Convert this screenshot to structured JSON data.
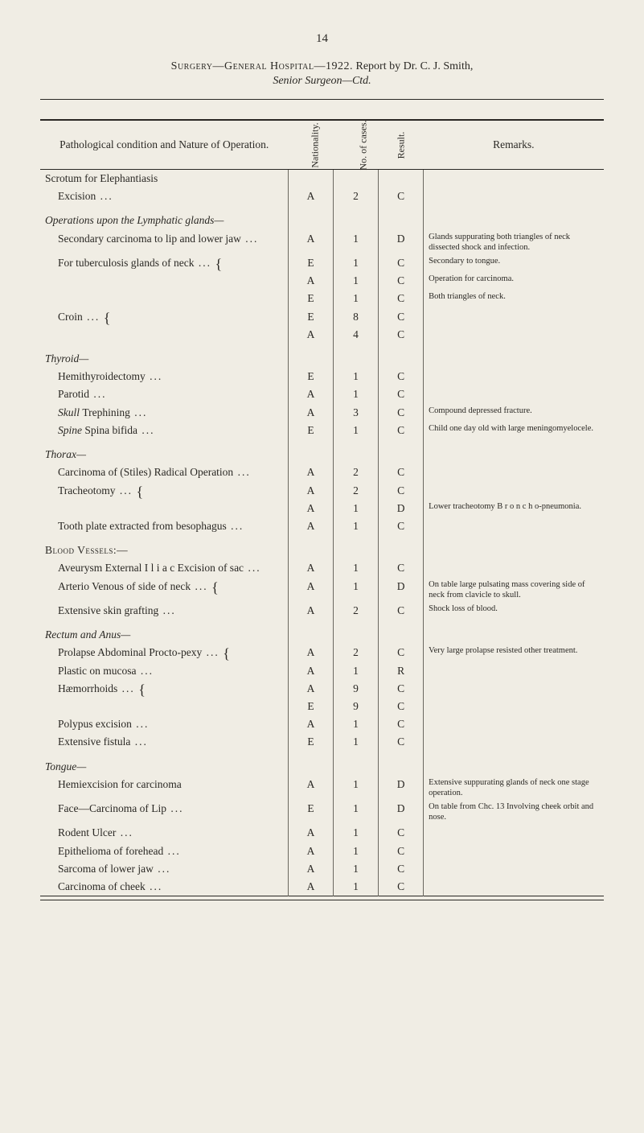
{
  "page_number": "14",
  "title_pre": "Surgery—General Hospital—1922.",
  "title_post": "Report by Dr. C. J. Smith,",
  "subtitle": "Senior Surgeon—Ctd.",
  "headers": {
    "condition": "Pathological condition and Nature of Operation.",
    "nationality": "Nationality.",
    "cases": "No. of cases.",
    "result": "Result.",
    "remarks": "Remarks."
  },
  "rows": [
    {
      "type": "row",
      "cond": "Scrotum for Elephantiasis",
      "indent": 0
    },
    {
      "type": "row",
      "cond": "Excision",
      "indent": 1,
      "dots": true,
      "n": "A",
      "v": "2",
      "r": "C"
    },
    {
      "type": "section",
      "cond": "Operations upon the Lymphatic glands—"
    },
    {
      "type": "row",
      "cond": "Secondary carcinoma to lip and lower jaw",
      "indent": 1,
      "dots": true,
      "n": "A",
      "v": "1",
      "r": "D",
      "rem": "Glands suppurating both triangles of neck dissected shock and infection."
    },
    {
      "type": "row",
      "cond": "For tuberculosis glands of neck",
      "indent": 1,
      "dots": true,
      "brace": true,
      "n": "E",
      "v": "1",
      "r": "C",
      "rem": "Secondary to tongue."
    },
    {
      "type": "row",
      "cond": "",
      "indent": 1,
      "n": "A",
      "v": "1",
      "r": "C",
      "rem": "Operation for carcinoma."
    },
    {
      "type": "row",
      "cond": "",
      "indent": 1,
      "n": "E",
      "v": "1",
      "r": "C",
      "rem": "Both triangles of neck."
    },
    {
      "type": "row",
      "cond": "Croin",
      "indent": 1,
      "dots": true,
      "brace": true,
      "n": "E",
      "v": "8",
      "r": "C"
    },
    {
      "type": "row",
      "cond": "",
      "indent": 1,
      "n": "A",
      "v": "4",
      "r": "C"
    },
    {
      "type": "section",
      "cond": "Thyroid—"
    },
    {
      "type": "row",
      "cond": "Hemithyroidectomy",
      "indent": 1,
      "dots": true,
      "n": "E",
      "v": "1",
      "r": "C"
    },
    {
      "type": "row",
      "cond": "Parotid",
      "indent": 1,
      "dots": true,
      "n": "A",
      "v": "1",
      "r": "C"
    },
    {
      "type": "row",
      "cond": "Skull Trephining",
      "iword": "Skull",
      "indent": 1,
      "dots": true,
      "n": "A",
      "v": "3",
      "r": "C",
      "rem": "Compound depressed fracture."
    },
    {
      "type": "row",
      "cond": "Spine Spina bifida",
      "iword": "Spine",
      "indent": 1,
      "dots": true,
      "n": "E",
      "v": "1",
      "r": "C",
      "rem": "Child one day old with large meningomyelocele."
    },
    {
      "type": "section",
      "cond": "Thorax—"
    },
    {
      "type": "row",
      "cond": "Carcinoma of (Stiles) Radical Operation",
      "indent": 1,
      "dots": true,
      "n": "A",
      "v": "2",
      "r": "C"
    },
    {
      "type": "row",
      "cond": "Tracheotomy",
      "indent": 1,
      "dots": true,
      "brace": true,
      "n": "A",
      "v": "2",
      "r": "C"
    },
    {
      "type": "row",
      "cond": "",
      "indent": 1,
      "n": "A",
      "v": "1",
      "r": "D",
      "rem": "Lower tracheotomy B r o n c h o-pneumonia."
    },
    {
      "type": "row",
      "cond": "Tooth plate extracted from besophagus",
      "indent": 1,
      "dots": true,
      "n": "A",
      "v": "1",
      "r": "C"
    },
    {
      "type": "sc-section",
      "cond": "Blood Vessels:—"
    },
    {
      "type": "row",
      "cond": "Aveurysm External I l i a c Excision of sac",
      "indent": 1,
      "dots": true,
      "n": "A",
      "v": "1",
      "r": "C"
    },
    {
      "type": "row",
      "cond": "Arterio Venous of side of neck",
      "indent": 1,
      "dots": true,
      "brace": true,
      "n": "A",
      "v": "1",
      "r": "D",
      "rem": "On table large pulsating mass covering side of neck from clavicle to skull."
    },
    {
      "type": "row",
      "cond": "Extensive skin grafting",
      "indent": 1,
      "dots": true,
      "n": "A",
      "v": "2",
      "r": "C",
      "rem": "Shock loss of blood."
    },
    {
      "type": "section",
      "cond": "Rectum and Anus—"
    },
    {
      "type": "row",
      "cond": "Prolapse Abdominal Procto-pexy",
      "indent": 1,
      "dots": true,
      "brace": true,
      "n": "A",
      "v": "2",
      "r": "C",
      "rem": "Very large prolapse resisted other treatment."
    },
    {
      "type": "row",
      "cond": "Plastic on mucosa",
      "indent": 1,
      "dots": true,
      "n": "A",
      "v": "1",
      "r": "R"
    },
    {
      "type": "row",
      "cond": "Hæmorrhoids",
      "indent": 1,
      "dots": true,
      "brace": true,
      "n": "A",
      "v": "9",
      "r": "C"
    },
    {
      "type": "row",
      "cond": "",
      "indent": 1,
      "n": "E",
      "v": "9",
      "r": "C"
    },
    {
      "type": "row",
      "cond": "Polypus excision",
      "indent": 1,
      "dots": true,
      "n": "A",
      "v": "1",
      "r": "C"
    },
    {
      "type": "row",
      "cond": "Extensive fistula",
      "indent": 1,
      "dots": true,
      "n": "E",
      "v": "1",
      "r": "C"
    },
    {
      "type": "section",
      "cond": "Tongue—"
    },
    {
      "type": "row",
      "cond": "Hemiexcision for carcinoma",
      "indent": 1,
      "n": "A",
      "v": "1",
      "r": "D",
      "rem": "Extensive suppurating glands of neck one stage operation."
    },
    {
      "type": "row",
      "cond": "Face—Carcinoma of Lip",
      "indent": 1,
      "dots": true,
      "n": "E",
      "v": "1",
      "r": "D",
      "rem": "On table from Chc. 13 Involving cheek orbit and nose."
    },
    {
      "type": "row",
      "cond": "Rodent Ulcer",
      "indent": 1,
      "dots": true,
      "n": "A",
      "v": "1",
      "r": "C"
    },
    {
      "type": "row",
      "cond": "Epithelioma of forehead",
      "indent": 1,
      "dots": true,
      "n": "A",
      "v": "1",
      "r": "C"
    },
    {
      "type": "row",
      "cond": "Sarcoma of lower jaw",
      "indent": 1,
      "dots": true,
      "n": "A",
      "v": "1",
      "r": "C"
    },
    {
      "type": "row",
      "cond": "Carcinoma of cheek",
      "indent": 1,
      "dots": true,
      "n": "A",
      "v": "1",
      "r": "C"
    }
  ]
}
